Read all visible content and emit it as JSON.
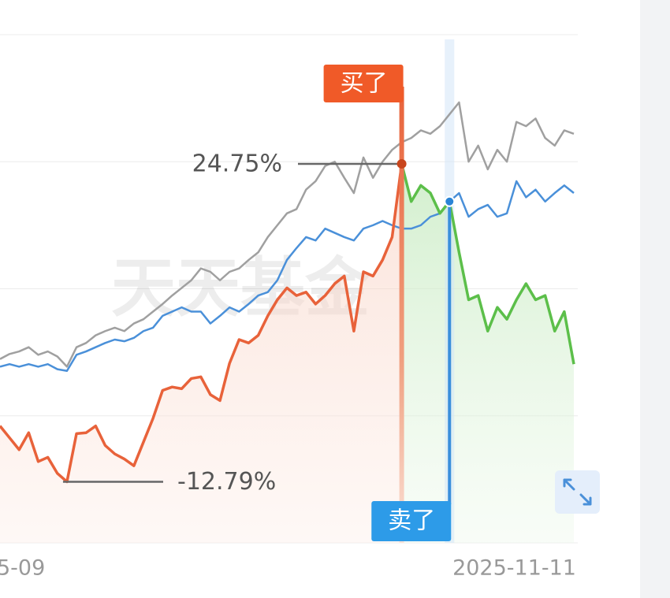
{
  "chart_data": {
    "type": "line",
    "categories": [
      "5-09",
      null,
      null,
      null,
      null,
      null,
      null,
      null,
      null,
      null,
      null,
      null,
      null,
      null,
      null,
      null,
      null,
      null,
      null,
      null,
      null,
      null,
      null,
      null,
      null,
      null,
      null,
      null,
      null,
      null,
      null,
      null,
      null,
      null,
      null,
      null,
      null,
      null,
      null,
      null,
      null,
      null,
      null,
      null,
      null,
      null,
      null,
      null,
      null,
      null,
      null,
      null,
      null,
      null,
      null,
      null,
      null,
      null,
      null,
      null,
      "2025-11-11"
    ],
    "series": [
      {
        "color": "#a0a0a0",
        "values": [
          1.7,
          2.3,
          2.6,
          3.1,
          2.2,
          2.6,
          2.0,
          0.8,
          3.1,
          3.6,
          4.5,
          5.0,
          5.4,
          5.0,
          5.9,
          6.4,
          7.3,
          8.2,
          9.2,
          10.1,
          11.0,
          12.4,
          12.0,
          11.0,
          12.0,
          12.4,
          13.4,
          14.3,
          16.1,
          17.5,
          18.9,
          19.4,
          21.7,
          22.7,
          24.5,
          25.0,
          23.1,
          21.3,
          25.5,
          23.1,
          25.0,
          26.4,
          27.3,
          27.8,
          28.7,
          28.3,
          29.2,
          30.6,
          32.0,
          25.0,
          26.9,
          24.1,
          26.4,
          25.0,
          29.7,
          29.2,
          30.1,
          27.8,
          26.9,
          28.7,
          28.3
        ]
      },
      {
        "color": "#4a90d9",
        "values": [
          0.8,
          1.1,
          0.8,
          1.1,
          0.8,
          1.1,
          0.5,
          0.3,
          2.2,
          2.6,
          3.1,
          3.6,
          4.0,
          3.8,
          4.2,
          5.0,
          5.4,
          6.8,
          7.3,
          7.8,
          7.3,
          7.3,
          5.9,
          6.8,
          7.8,
          7.3,
          8.2,
          9.2,
          9.6,
          11.0,
          13.4,
          14.8,
          16.1,
          15.7,
          17.1,
          16.6,
          16.1,
          15.7,
          17.1,
          17.5,
          18.0,
          17.5,
          17.1,
          17.1,
          17.5,
          18.5,
          18.9,
          20.3,
          21.3,
          18.5,
          19.4,
          19.9,
          18.5,
          18.9,
          22.7,
          20.8,
          21.7,
          20.3,
          21.3,
          22.2,
          21.3
        ]
      },
      {
        "color": "#e8623a",
        "values": [
          -6.2,
          -7.6,
          -9.0,
          -7.0,
          -10.4,
          -9.9,
          -11.8,
          -12.79,
          -7.1,
          -7.0,
          -6.2,
          -8.5,
          -9.5,
          -10.1,
          -10.9,
          -8.1,
          -5.3,
          -2.0,
          -1.6,
          -1.8,
          -0.6,
          -0.4,
          -2.5,
          -3.2,
          1.2,
          4.0,
          3.6,
          4.5,
          6.8,
          8.7,
          10.1,
          9.2,
          9.6,
          8.2,
          9.2,
          10.6,
          11.5,
          5.0,
          12.0,
          11.5,
          13.4,
          16.1,
          24.75,
          null,
          null,
          null,
          null,
          null,
          null,
          null,
          null,
          null,
          null,
          null,
          null,
          null,
          null,
          null,
          null,
          null,
          null
        ]
      },
      {
        "color": "#5cbf4a",
        "values": [
          null,
          null,
          null,
          null,
          null,
          null,
          null,
          null,
          null,
          null,
          null,
          null,
          null,
          null,
          null,
          null,
          null,
          null,
          null,
          null,
          null,
          null,
          null,
          null,
          null,
          null,
          null,
          null,
          null,
          null,
          null,
          null,
          null,
          null,
          null,
          null,
          null,
          null,
          null,
          null,
          null,
          null,
          24.75,
          20.3,
          22.2,
          21.3,
          18.9,
          20.3,
          14.3,
          8.7,
          9.2,
          5.0,
          7.8,
          6.4,
          8.7,
          10.6,
          8.7,
          9.2,
          5.0,
          7.3,
          1.1
        ]
      }
    ],
    "ylim": [
      -20,
      40
    ],
    "yticks": [
      -20,
      -5,
      10,
      25,
      40
    ],
    "grid": true,
    "max_label": "24.75%",
    "min_label": "-12.79%",
    "buy_label": "买了",
    "sell_label": "卖了",
    "watermark": "天天基金"
  }
}
